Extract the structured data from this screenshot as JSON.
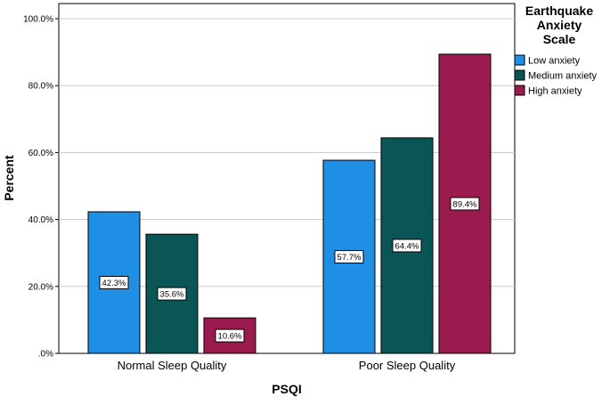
{
  "chart_data": {
    "type": "bar",
    "xlabel": "PSQI",
    "ylabel": "Percent",
    "ylim": [
      0,
      100
    ],
    "yticks": [
      {
        "value": 0,
        "label": ".0%"
      },
      {
        "value": 20,
        "label": "20.0%"
      },
      {
        "value": 40,
        "label": "40.0%"
      },
      {
        "value": 60,
        "label": "60.0%"
      },
      {
        "value": 80,
        "label": "80.0%"
      },
      {
        "value": 100,
        "label": "100.0%"
      }
    ],
    "grid": true,
    "categories": [
      "Normal Sleep Quality",
      "Poor Sleep Quality"
    ],
    "legend": {
      "title": [
        "Earthquake",
        "Anxiety",
        "Scale"
      ],
      "position": "top-right"
    },
    "series": [
      {
        "name": "Low anxiety",
        "color": "#1f8fe6",
        "values": [
          42.3,
          57.7
        ],
        "labels": [
          "42.3%",
          "57.7%"
        ]
      },
      {
        "name": "Medium anxiety",
        "color": "#0a5657",
        "values": [
          35.6,
          64.4
        ],
        "labels": [
          "35.6%",
          "64.4%"
        ]
      },
      {
        "name": "High anxiety",
        "color": "#9c1b4e",
        "values": [
          10.6,
          89.4
        ],
        "labels": [
          "10.6%",
          "89.4%"
        ]
      }
    ]
  }
}
